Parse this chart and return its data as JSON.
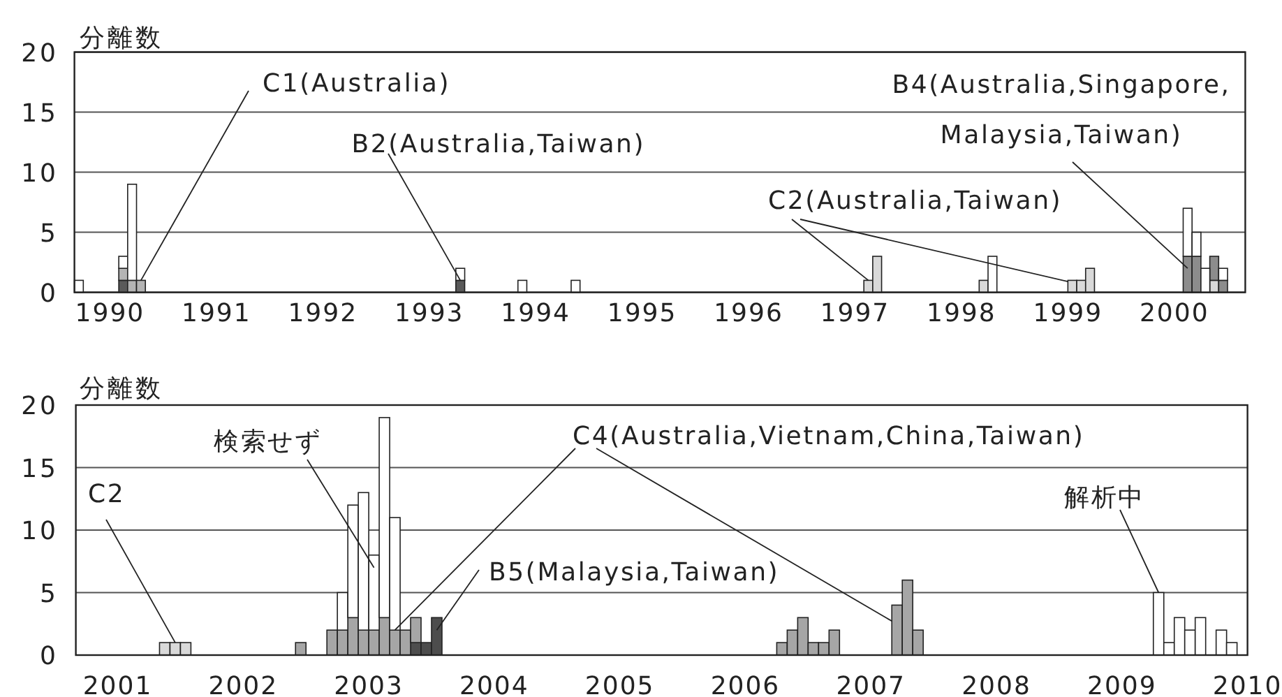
{
  "chart_data": [
    {
      "type": "bar",
      "stacked": true,
      "ylabel": "分離数",
      "x": [
        "1989-09",
        "1990-02",
        "1990-03",
        "1990-04",
        "1993-04",
        "1993-11",
        "1994-05",
        "1997-02",
        "1997-03",
        "1998-03",
        "1998-04",
        "1999-01",
        "1999-02",
        "1999-03",
        "2000-02",
        "2000-03",
        "2000-04",
        "2000-05",
        "2000-06"
      ],
      "xlim": [
        "1989-09",
        "2000-09"
      ],
      "xticks": [
        "1990",
        "1991",
        "1992",
        "1993",
        "1994",
        "1995",
        "1996",
        "1997",
        "1998",
        "1999",
        "2000"
      ],
      "ylim": [
        0,
        20
      ],
      "yticks": [
        0,
        5,
        10,
        15,
        20
      ],
      "grid": "y",
      "series": [
        {
          "color": "#5a5a5a",
          "values": [
            null,
            1,
            null,
            null,
            1,
            null,
            null,
            null,
            null,
            null,
            null,
            null,
            null,
            null,
            null,
            null,
            null,
            null,
            null
          ]
        },
        {
          "color": "#b4b4b4",
          "values": [
            null,
            1,
            1,
            1,
            null,
            null,
            null,
            null,
            null,
            null,
            null,
            null,
            null,
            null,
            null,
            null,
            null,
            null,
            null
          ]
        },
        {
          "color": "#d9d9d9",
          "values": [
            null,
            null,
            null,
            null,
            null,
            null,
            null,
            1,
            3,
            1,
            null,
            1,
            1,
            2,
            null,
            null,
            null,
            1,
            null
          ]
        },
        {
          "color": "#8c8c8c",
          "values": [
            null,
            null,
            null,
            null,
            null,
            null,
            null,
            null,
            null,
            null,
            null,
            null,
            null,
            null,
            3,
            3,
            null,
            2,
            1
          ]
        },
        {
          "color": "#ffffff",
          "values": [
            1,
            1,
            8,
            null,
            1,
            1,
            1,
            null,
            null,
            null,
            3,
            null,
            null,
            null,
            4,
            2,
            2,
            null,
            1
          ]
        }
      ],
      "annotations": [
        {
          "text": "C1(Australia)",
          "x": "1990-04",
          "y": 1
        },
        {
          "text": "B2(Australia,Taiwan)",
          "x": "1993-04",
          "y": 1
        },
        {
          "text": "C2(Australia,Taiwan)",
          "x": "1997-02",
          "y": 1
        },
        {
          "text": "B4(Australia,Singapore, Malaysia,Taiwan)",
          "x": "2000-02",
          "y": 2
        }
      ]
    },
    {
      "type": "bar",
      "stacked": true,
      "ylabel": "分離数",
      "x": [
        "2001-05",
        "2001-06",
        "2001-07",
        "2002-06",
        "2002-09",
        "2002-10",
        "2002-11",
        "2002-12",
        "2003-01",
        "2003-02",
        "2003-03",
        "2003-04",
        "2003-05",
        "2003-06",
        "2003-07",
        "2006-04",
        "2006-05",
        "2006-06",
        "2006-07",
        "2006-08",
        "2006-09",
        "2007-03",
        "2007-04",
        "2007-05",
        "2009-04",
        "2009-05",
        "2009-06",
        "2009-07",
        "2009-08",
        "2009-10",
        "2009-11"
      ],
      "xlim": [
        "2000-09",
        "2010-01"
      ],
      "xticks": [
        "2001",
        "2002",
        "2003",
        "2004",
        "2005",
        "2006",
        "2007",
        "2008",
        "2009",
        "2010"
      ],
      "ylim": [
        0,
        20
      ],
      "yticks": [
        0,
        5,
        10,
        15,
        20
      ],
      "grid": "y",
      "series": [
        {
          "color": "#d9d9d9",
          "values": [
            1,
            1,
            1,
            null,
            null,
            null,
            null,
            null,
            null,
            null,
            null,
            null,
            null,
            null,
            null,
            null,
            null,
            null,
            null,
            null,
            null,
            null,
            null,
            null,
            null,
            null,
            null,
            null,
            null,
            null,
            null
          ]
        },
        {
          "color": "#4d4d4d",
          "values": [
            null,
            null,
            null,
            null,
            null,
            null,
            null,
            null,
            null,
            null,
            null,
            null,
            1,
            1,
            3,
            null,
            null,
            null,
            null,
            null,
            null,
            null,
            null,
            null,
            null,
            null,
            null,
            null,
            null,
            null,
            null
          ]
        },
        {
          "color": "#a6a6a6",
          "values": [
            null,
            null,
            null,
            1,
            2,
            2,
            3,
            2,
            2,
            3,
            2,
            2,
            2,
            null,
            null,
            1,
            2,
            3,
            1,
            1,
            2,
            4,
            6,
            2,
            null,
            null,
            null,
            null,
            null,
            null,
            null
          ]
        },
        {
          "color": "#ffffff",
          "values": [
            null,
            null,
            null,
            null,
            null,
            3,
            9,
            11,
            6,
            16,
            9,
            null,
            null,
            null,
            null,
            null,
            null,
            null,
            null,
            null,
            null,
            null,
            null,
            null,
            5,
            1,
            3,
            2,
            3,
            2,
            1
          ]
        }
      ],
      "annotations": [
        {
          "text": "C2",
          "x": "2001-06",
          "y": 1
        },
        {
          "text": "検索せず",
          "x": "2003-01",
          "y": 7
        },
        {
          "text": "C4(Australia,Vietnam,China,Taiwan)",
          "x": "2003-03",
          "y": 2
        },
        {
          "text": "B5(Malaysia,Taiwan)",
          "x": "2003-07",
          "y": 2
        },
        {
          "text": "解析中",
          "x": "2009-04",
          "y": 5
        }
      ]
    }
  ]
}
